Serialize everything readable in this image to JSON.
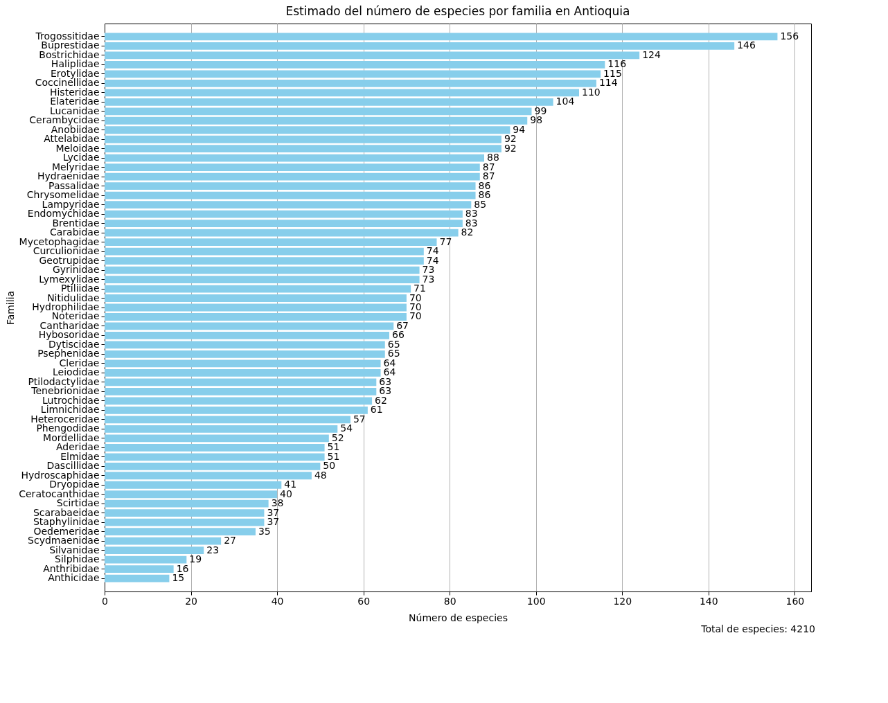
{
  "chart_data": {
    "type": "bar",
    "orientation": "horizontal",
    "title": "Estimado del número de especies por familia en Antioquia",
    "xlabel": "Número de especies",
    "ylabel": "Familia",
    "categories": [
      "Trogossitidae",
      "Buprestidae",
      "Bostrichidae",
      "Haliplidae",
      "Erotylidae",
      "Coccinellidae",
      "Histeridae",
      "Elateridae",
      "Lucanidae",
      "Cerambycidae",
      "Anobiidae",
      "Attelabidae",
      "Meloidae",
      "Lycidae",
      "Melyridae",
      "Hydraenidae",
      "Passalidae",
      "Chrysomelidae",
      "Lampyridae",
      "Endomychidae",
      "Brentidae",
      "Carabidae",
      "Mycetophagidae",
      "Curculionidae",
      "Geotrupidae",
      "Gyrinidae",
      "Lymexylidae",
      "Ptiliidae",
      "Nitidulidae",
      "Hydrophilidae",
      "Noteridae",
      "Cantharidae",
      "Hybosoridae",
      "Dytiscidae",
      "Psephenidae",
      "Cleridae",
      "Leiodidae",
      "Ptilodactylidae",
      "Tenebrionidae",
      "Lutrochidae",
      "Limnichidae",
      "Heteroceridae",
      "Phengodidae",
      "Mordellidae",
      "Aderidae",
      "Elmidae",
      "Dascillidae",
      "Hydroscaphidae",
      "Dryopidae",
      "Ceratocanthidae",
      "Scirtidae",
      "Scarabaeidae",
      "Staphylinidae",
      "Oedemeridae",
      "Scydmaenidae",
      "Silvanidae",
      "Silphidae",
      "Anthribidae",
      "Anthicidae"
    ],
    "values": [
      156,
      146,
      124,
      116,
      115,
      114,
      110,
      104,
      99,
      98,
      94,
      92,
      92,
      88,
      87,
      87,
      86,
      86,
      85,
      83,
      83,
      82,
      77,
      74,
      74,
      73,
      73,
      71,
      70,
      70,
      70,
      67,
      66,
      65,
      65,
      64,
      64,
      63,
      63,
      62,
      61,
      57,
      54,
      52,
      51,
      51,
      50,
      48,
      41,
      40,
      38,
      37,
      37,
      35,
      27,
      23,
      19,
      16,
      15
    ],
    "color": "#87ceeb",
    "data_labels": true,
    "grid": "x",
    "xlim": [
      0,
      163.8
    ],
    "xticks": [
      0,
      20,
      40,
      60,
      80,
      100,
      120,
      140,
      160
    ],
    "annotations": [
      "Total de especies: 4210"
    ]
  }
}
